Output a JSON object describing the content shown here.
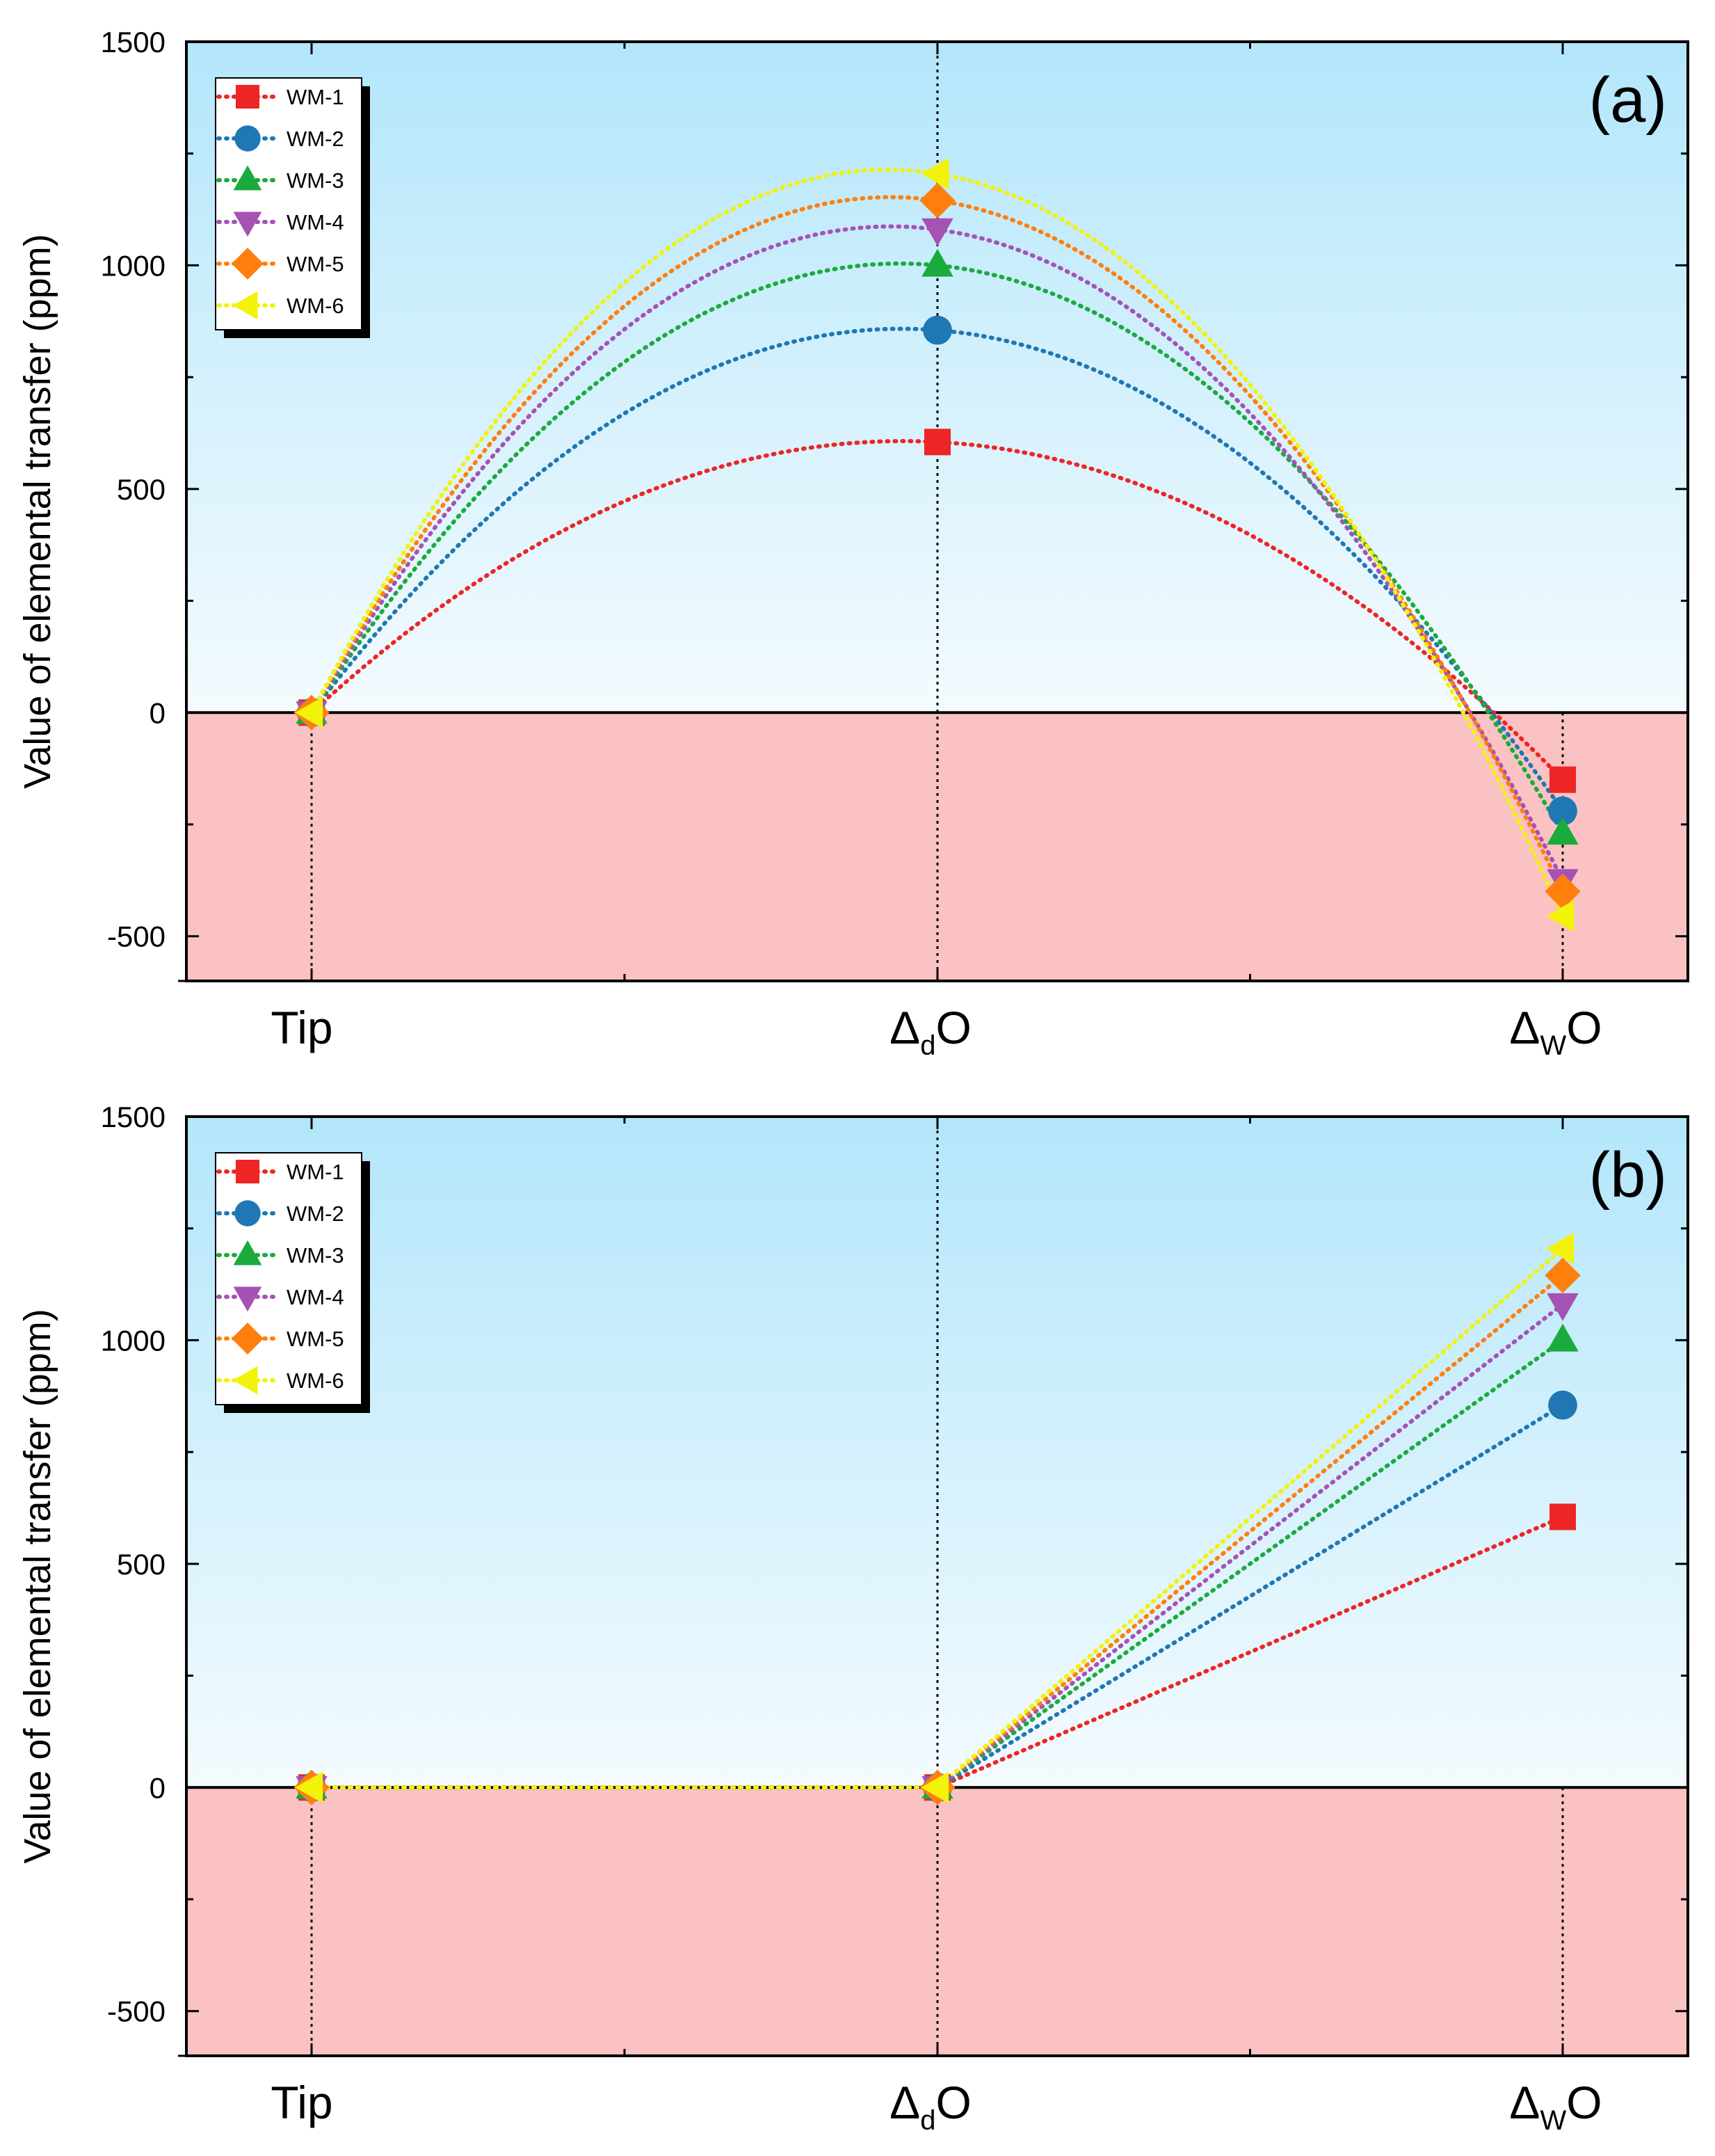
{
  "chart_data": [
    {
      "type": "line",
      "panel_label": "(a)",
      "ylabel": "Value of elemental transfer (ppm)",
      "xlabel": "",
      "categories": [
        "Tip",
        "ΔdO",
        "ΔWO"
      ],
      "category_parts": [
        {
          "main": "Tip",
          "sub": "",
          "tail": ""
        },
        {
          "main": "Δ",
          "sub": "d",
          "tail": "O"
        },
        {
          "main": "Δ",
          "sub": "W",
          "tail": "O"
        }
      ],
      "ylim": [
        -600,
        1500
      ],
      "yticks": [
        -500,
        0,
        500,
        1000,
        1500
      ],
      "ytick_labels": [
        "-500",
        "0",
        "500",
        "1000",
        "1500"
      ],
      "line_style": "curved-dotted",
      "series": [
        {
          "name": "WM-1",
          "values": [
            0,
            605,
            -150
          ]
        },
        {
          "name": "WM-2",
          "values": [
            0,
            855,
            -220
          ]
        },
        {
          "name": "WM-3",
          "values": [
            0,
            1000,
            -270
          ]
        },
        {
          "name": "WM-4",
          "values": [
            0,
            1080,
            -375
          ]
        },
        {
          "name": "WM-5",
          "values": [
            0,
            1145,
            -400
          ]
        },
        {
          "name": "WM-6",
          "values": [
            0,
            1205,
            -455
          ]
        }
      ],
      "legend_position": "top-left"
    },
    {
      "type": "line",
      "panel_label": "(b)",
      "ylabel": "Value of elemental transfer (ppm)",
      "xlabel": "",
      "categories": [
        "Tip",
        "ΔdO",
        "ΔWO"
      ],
      "category_parts": [
        {
          "main": "Tip",
          "sub": "",
          "tail": ""
        },
        {
          "main": "Δ",
          "sub": "d",
          "tail": "O"
        },
        {
          "main": "Δ",
          "sub": "W",
          "tail": "O"
        }
      ],
      "ylim": [
        -600,
        1500
      ],
      "yticks": [
        -500,
        0,
        500,
        1000,
        1500
      ],
      "ytick_labels": [
        "-500",
        "0",
        "500",
        "1000",
        "1500"
      ],
      "line_style": "straight-dotted",
      "series": [
        {
          "name": "WM-1",
          "values": [
            0,
            0,
            605
          ]
        },
        {
          "name": "WM-2",
          "values": [
            0,
            0,
            855
          ]
        },
        {
          "name": "WM-3",
          "values": [
            0,
            0,
            1000
          ]
        },
        {
          "name": "WM-4",
          "values": [
            0,
            0,
            1080
          ]
        },
        {
          "name": "WM-5",
          "values": [
            0,
            0,
            1145
          ]
        },
        {
          "name": "WM-6",
          "values": [
            0,
            0,
            1205
          ]
        }
      ],
      "legend_position": "top-left"
    }
  ],
  "series_style": [
    {
      "name": "WM-1",
      "color": "#ee2525",
      "marker": "square"
    },
    {
      "name": "WM-2",
      "color": "#1f77b4",
      "marker": "circle"
    },
    {
      "name": "WM-3",
      "color": "#1aab3c",
      "marker": "triangle-up"
    },
    {
      "name": "WM-4",
      "color": "#a552b5",
      "marker": "triangle-down"
    },
    {
      "name": "WM-5",
      "color": "#ff7f0e",
      "marker": "diamond"
    },
    {
      "name": "WM-6",
      "color": "#f2f20a",
      "marker": "triangle-left"
    }
  ],
  "colors": {
    "positive_region_top": "#b3e6fb",
    "positive_region_bottom": "#f4fbfe",
    "negative_region": "#fac2c2",
    "axis": "#000000"
  }
}
